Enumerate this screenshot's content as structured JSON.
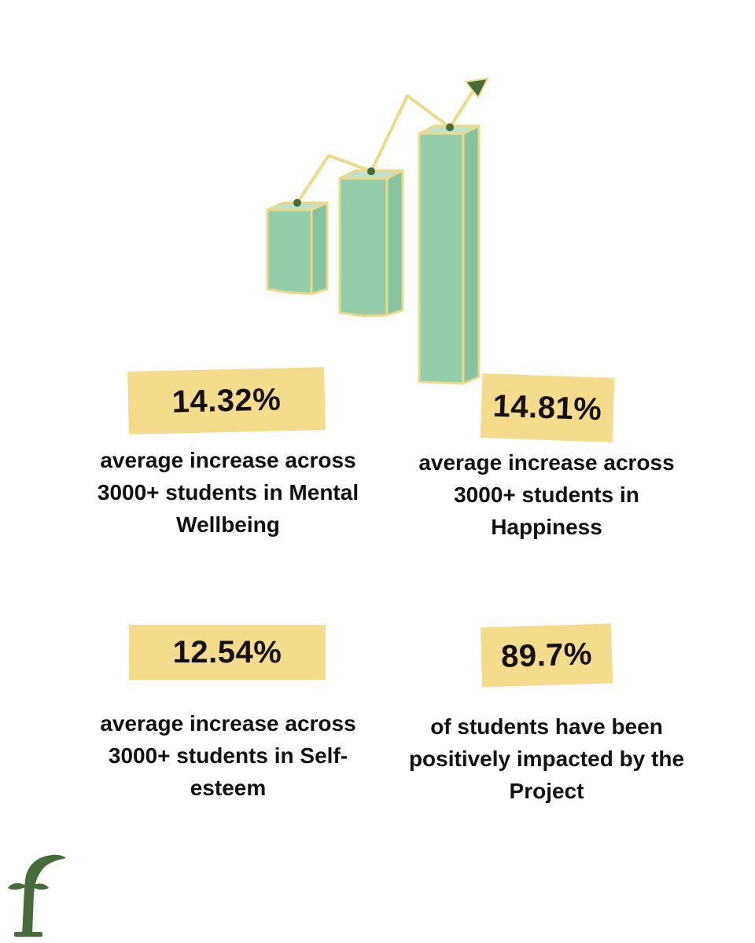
{
  "colors": {
    "background": "#ffffff",
    "badge": "#f3dc8c",
    "bar_fill": "#93cdac",
    "bar_outline": "#ecd98a",
    "trend_line": "#ecd98a",
    "accent_green": "#486b3c",
    "text": "#111111"
  },
  "illustration": {
    "icon": "growth-bar-chart-icon",
    "arrow": "trend-arrow-icon"
  },
  "stats": [
    {
      "value": "14.32%",
      "caption": [
        "average increase across",
        "3000+ students in Mental",
        "Wellbeing"
      ]
    },
    {
      "value": "14.81%",
      "caption": [
        "average increase across",
        "3000+ students in",
        "Happiness"
      ]
    },
    {
      "value": "12.54%",
      "caption": [
        "average increase across",
        "3000+ students in Self-",
        "esteem"
      ]
    },
    {
      "value": "89.7%",
      "caption": [
        "of students have been",
        "positively impacted by the",
        "Project"
      ]
    }
  ],
  "logo": {
    "icon": "sprout-f-logo-icon"
  }
}
